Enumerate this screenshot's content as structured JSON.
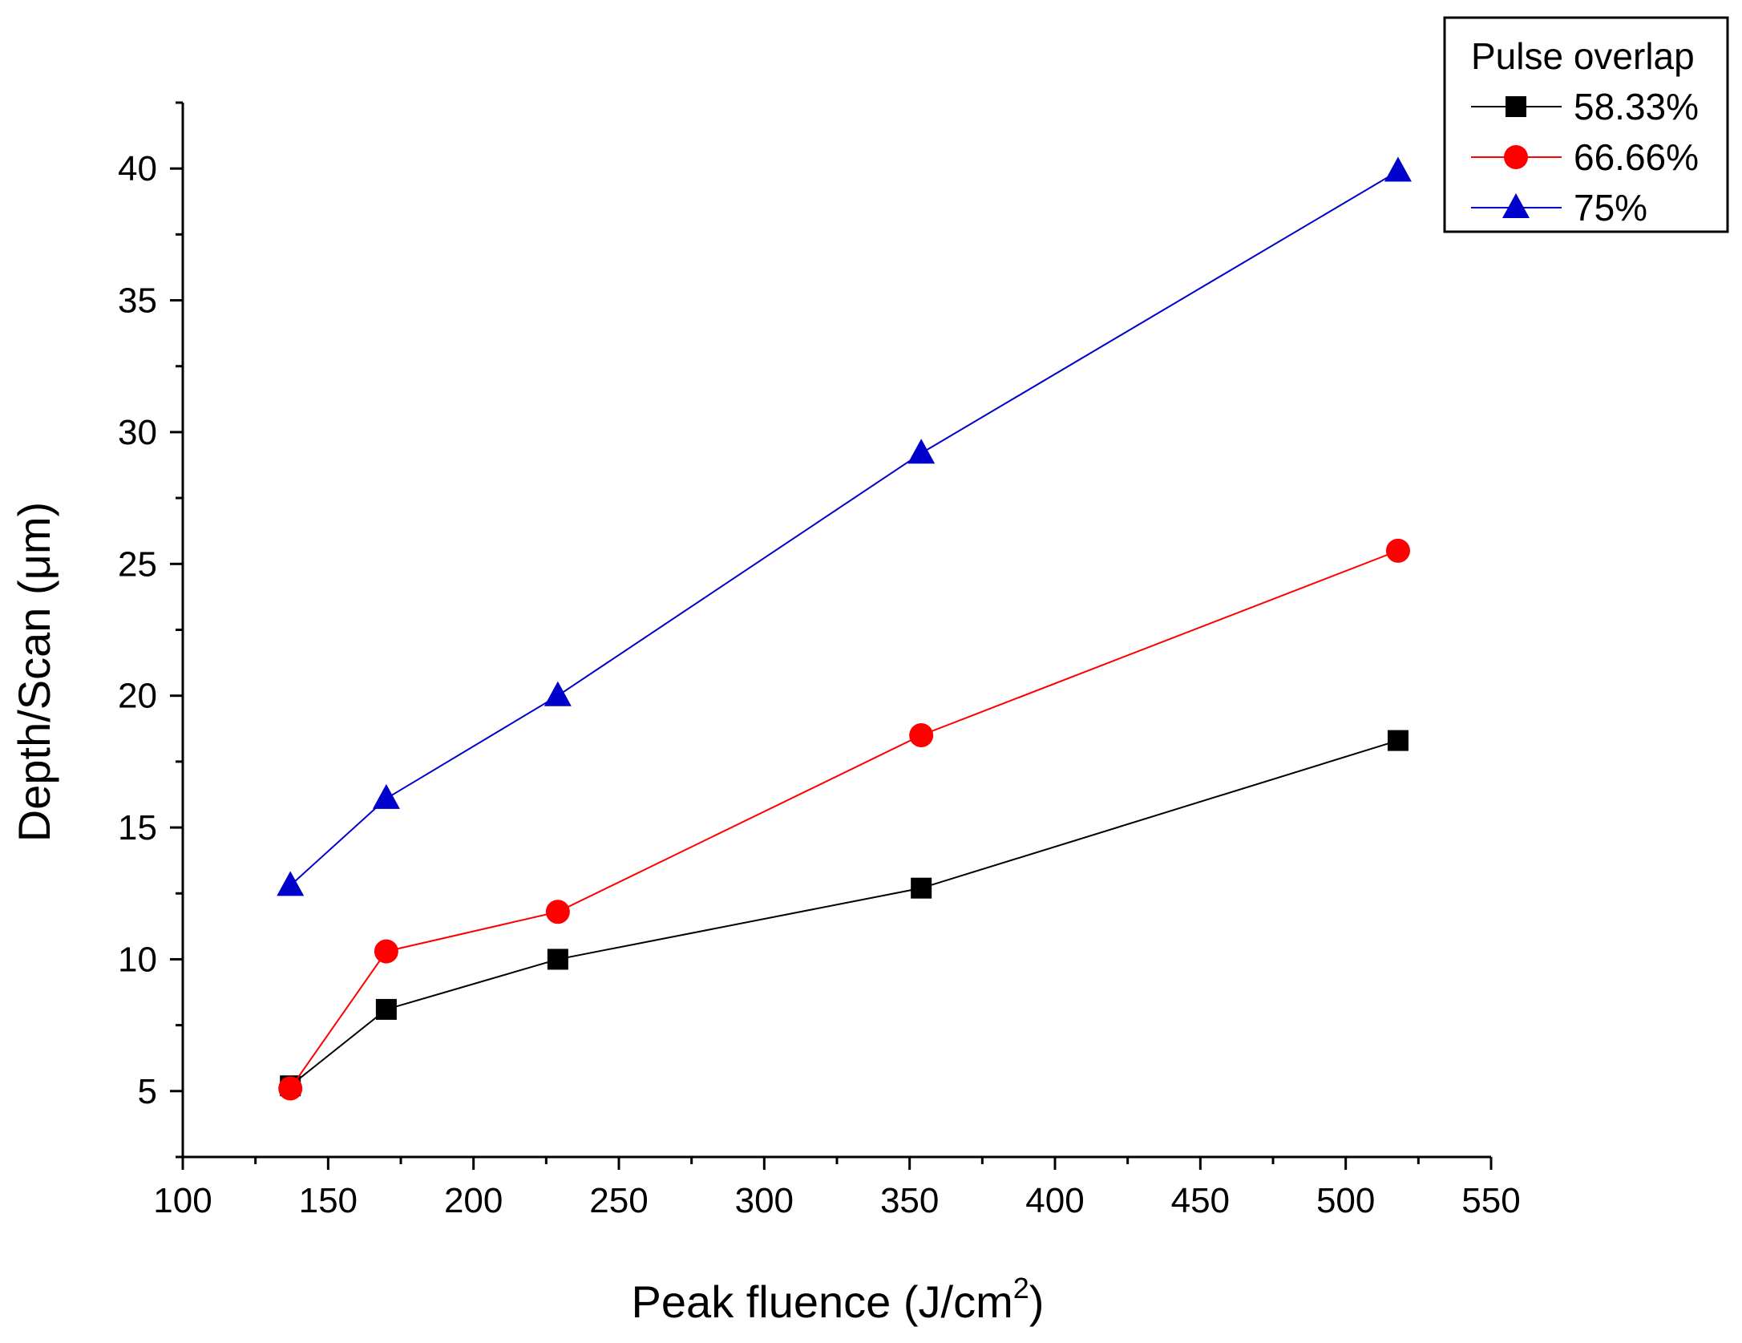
{
  "chart_data": {
    "type": "line",
    "title": "",
    "xlabel": "Peak fluence (J/cm",
    "xlabel_sup": "2",
    "xlabel_end": ")",
    "ylabel": "Depth/Scan (μm)",
    "xlim": [
      100,
      550
    ],
    "ylim": [
      2.5,
      42.5
    ],
    "xticks": [
      100,
      150,
      200,
      250,
      300,
      350,
      400,
      450,
      500,
      550
    ],
    "yticks": [
      5,
      10,
      15,
      20,
      25,
      30,
      35,
      40
    ],
    "grid": false,
    "legend": {
      "title": "Pulse overlap",
      "placement": "top-right"
    },
    "x": [
      137,
      170,
      229,
      354,
      518
    ],
    "series": [
      {
        "name": "58.33%",
        "marker": "square",
        "color": "#000000",
        "values": [
          5.2,
          8.1,
          10.0,
          12.7,
          18.3
        ]
      },
      {
        "name": "66.66%",
        "marker": "circle",
        "color": "#ff0000",
        "values": [
          5.1,
          10.3,
          11.8,
          18.5,
          25.5
        ]
      },
      {
        "name": "75%",
        "marker": "triangle",
        "color": "#0000cc",
        "values": [
          12.8,
          16.1,
          20.0,
          29.2,
          39.9
        ]
      }
    ]
  }
}
